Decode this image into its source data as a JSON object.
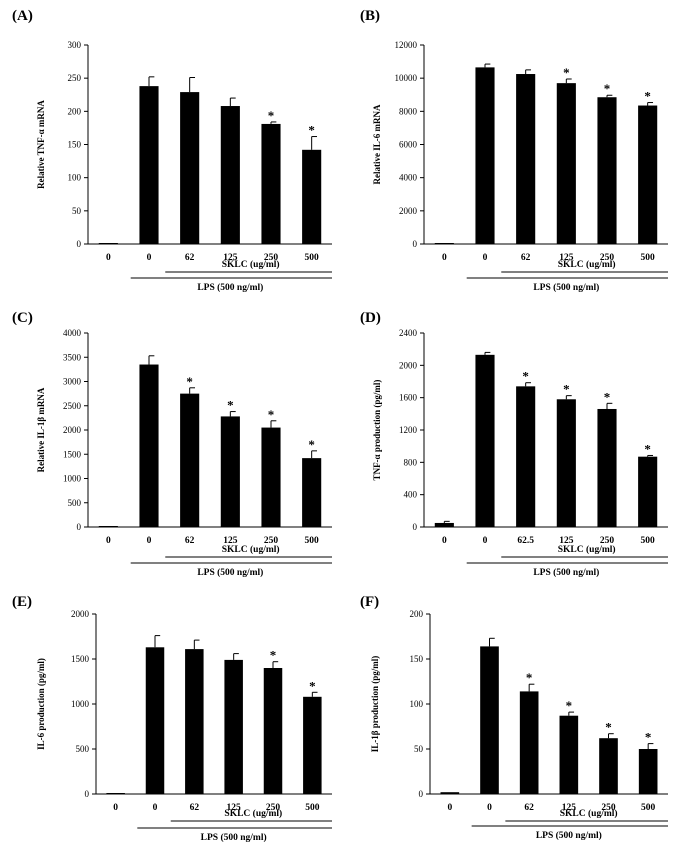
{
  "chart_data": [
    {
      "type": "bar",
      "panel": "(A)",
      "ylabel": "Relative TNF-α mRNA",
      "ylim": [
        0,
        300
      ],
      "yticks": [
        0,
        50,
        100,
        150,
        200,
        250,
        300
      ],
      "categories": [
        "0",
        "0",
        "62",
        "125",
        "250",
        "500"
      ],
      "values": [
        0,
        238,
        229,
        208,
        181,
        142
      ],
      "errors": [
        0,
        14,
        22,
        12,
        3,
        20
      ],
      "significant": [
        false,
        false,
        false,
        false,
        true,
        true
      ],
      "sklc_label": "SKLC (ug/ml)",
      "lps_label": "LPS (500 ng/ml)"
    },
    {
      "type": "bar",
      "panel": "(B)",
      "ylabel": "Relative IL-6  mRNA",
      "ylim": [
        0,
        12000
      ],
      "yticks": [
        0,
        2000,
        4000,
        6000,
        8000,
        10000,
        12000
      ],
      "categories": [
        "0",
        "0",
        "62",
        "125",
        "250",
        "500"
      ],
      "values": [
        50,
        10650,
        10250,
        9700,
        8850,
        8350
      ],
      "errors": [
        0,
        200,
        250,
        250,
        120,
        180
      ],
      "significant": [
        false,
        false,
        false,
        true,
        true,
        true
      ],
      "sklc_label": "SKLC (ug/ml)",
      "lps_label": "LPS (500 ng/ml)"
    },
    {
      "type": "bar",
      "panel": "(C)",
      "ylabel": "Relative IL-1β mRNA",
      "ylim": [
        0,
        4000
      ],
      "yticks": [
        0,
        500,
        1000,
        1500,
        2000,
        2500,
        3000,
        3500,
        4000
      ],
      "categories": [
        "0",
        "0",
        "62",
        "125",
        "250",
        "500"
      ],
      "values": [
        0,
        3350,
        2750,
        2280,
        2050,
        1420
      ],
      "errors": [
        0,
        180,
        120,
        100,
        140,
        150
      ],
      "significant": [
        false,
        false,
        true,
        true,
        true,
        true
      ],
      "sklc_label": "SKLC (ug/ml)",
      "lps_label": "LPS (500 ng/ml)"
    },
    {
      "type": "bar",
      "panel": "(D)",
      "ylabel": "TNF-α production  (pg/ml)",
      "ylim": [
        0,
        2400
      ],
      "yticks": [
        0,
        400,
        800,
        1200,
        1600,
        2000,
        2400
      ],
      "categories": [
        "0",
        "0",
        "62.5",
        "125",
        "250",
        "500"
      ],
      "values": [
        50,
        2130,
        1740,
        1580,
        1460,
        870
      ],
      "errors": [
        20,
        30,
        45,
        45,
        70,
        15
      ],
      "significant": [
        false,
        false,
        true,
        true,
        true,
        true
      ],
      "sklc_label": "SKLC (ug/ml)",
      "lps_label": "LPS (500 ng/ml)"
    },
    {
      "type": "bar",
      "panel": "(E)",
      "ylabel": "IL-6 production   (pg/ml)",
      "ylim": [
        0,
        2000
      ],
      "yticks": [
        0,
        500,
        1000,
        1500,
        2000
      ],
      "categories": [
        "0",
        "0",
        "62",
        "125",
        "250",
        "500"
      ],
      "values": [
        0,
        1630,
        1610,
        1490,
        1400,
        1080
      ],
      "errors": [
        0,
        130,
        100,
        70,
        70,
        50
      ],
      "significant": [
        false,
        false,
        false,
        false,
        true,
        true
      ],
      "sklc_label": "SKLC (ug/ml)",
      "lps_label": "LPS (500 ng/ml)"
    },
    {
      "type": "bar",
      "panel": "(F)",
      "ylabel": "IL-1β production  (pg/ml)",
      "ylim": [
        0,
        200
      ],
      "yticks": [
        0,
        50,
        100,
        150,
        200
      ],
      "categories": [
        "0",
        "0",
        "62",
        "125",
        "250",
        "500"
      ],
      "values": [
        2,
        164,
        114,
        87,
        62,
        50
      ],
      "errors": [
        0,
        9,
        8,
        4,
        5,
        6
      ],
      "significant": [
        false,
        false,
        true,
        true,
        true,
        true
      ],
      "sklc_label": "SKLC (ug/ml)",
      "lps_label": "LPS (500 ng/ml)"
    }
  ]
}
